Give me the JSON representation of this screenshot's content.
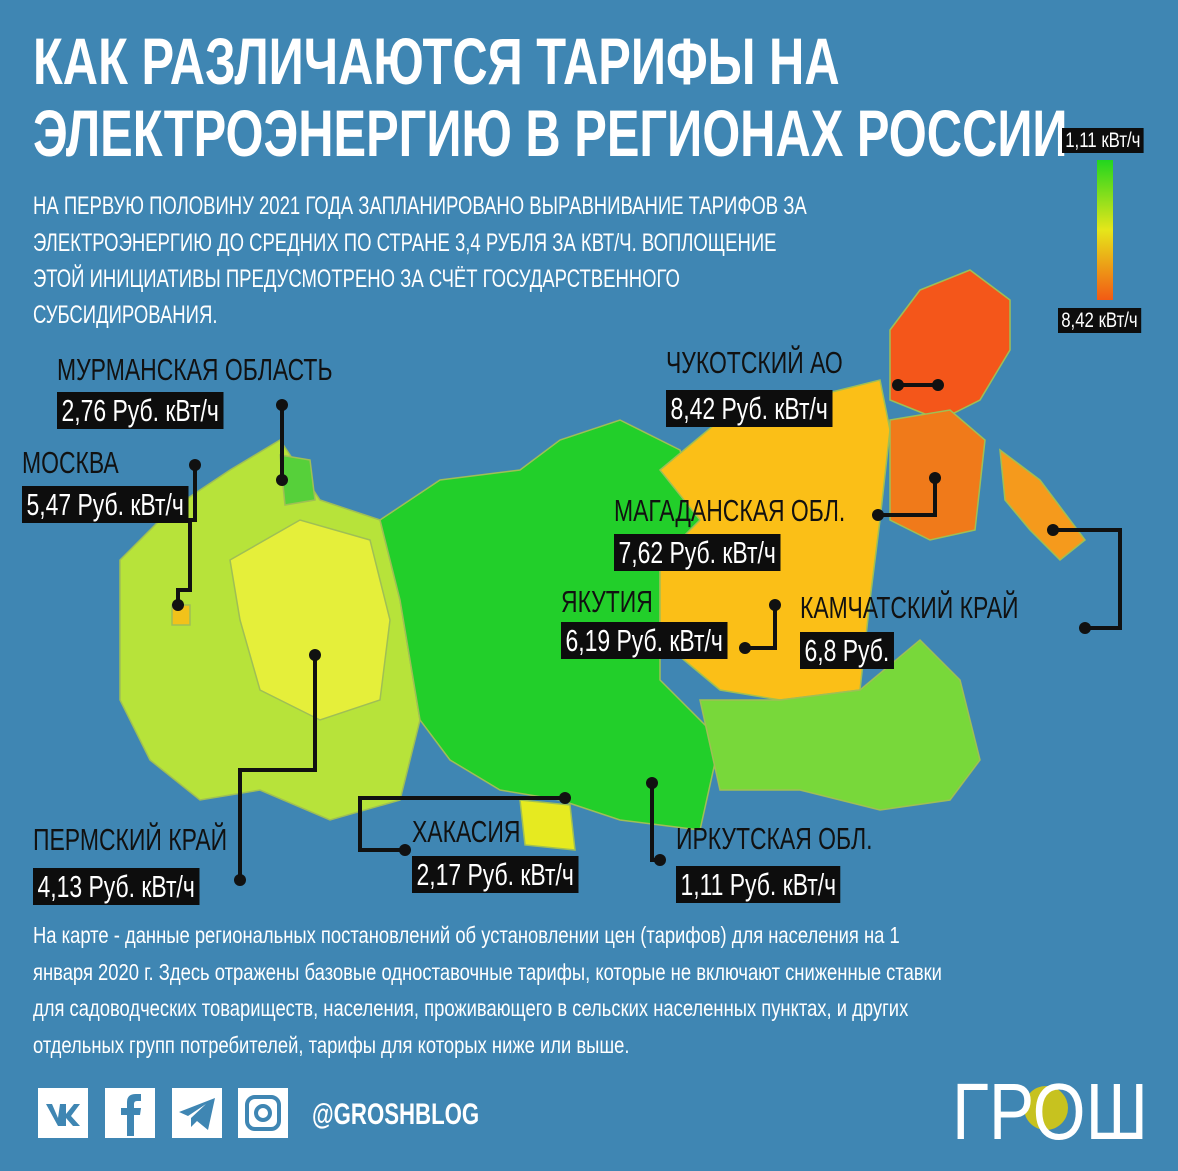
{
  "header": {
    "title": [
      "КАК РАЗЛИЧАЮТСЯ ТАРИФЫ НА",
      "ЭЛЕКТРОЭНЕРГИЮ В РЕГИОНАХ РОССИИ"
    ],
    "subtitle": [
      "НА ПЕРВУЮ ПОЛОВИНУ 2021 ГОДА ЗАПЛАНИРОВАНО ВЫРАВНИВАНИЕ ТАРИФОВ ЗА",
      "ЭЛЕКТРОЭНЕРГИЮ ДО СРЕДНИХ ПО СТРАНЕ 3,4 РУБЛЯ ЗА КВТ/Ч. ВОПЛОЩЕНИЕ",
      "ЭТОЙ ИНИЦИАТИВЫ ПРЕДУСМОТРЕНО ЗА СЧЁТ ГОСУДАРСТВЕННОГО",
      "СУБСИДИРОВАНИЯ."
    ]
  },
  "legend": {
    "low": "1,11 кВт/ч",
    "high": "8,42 кВт/ч"
  },
  "regions": [
    {
      "name": "МУРМАНСКАЯ ОБЛАСТЬ",
      "value": "2,76 Руб. кВт/ч"
    },
    {
      "name": "МОСКВА",
      "value": "5,47 Руб. кВт/ч"
    },
    {
      "name": "ПЕРМСКИЙ КРАЙ",
      "value": "4,13 Руб. кВт/ч"
    },
    {
      "name": "ХАКАСИЯ",
      "value": "2,17 Руб. кВт/ч"
    },
    {
      "name": "ИРКУТСКАЯ ОБЛ.",
      "value": "1,11 Руб. кВт/ч"
    },
    {
      "name": "ЯКУТИЯ",
      "value": "6,19 Руб. кВт/ч"
    },
    {
      "name": "МАГАДАНСКАЯ ОБЛ.",
      "value": "7,62 Руб. кВт/ч"
    },
    {
      "name": "КАМЧАТСКИЙ КРАЙ",
      "value": "6,8 Руб."
    },
    {
      "name": "ЧУКОТСКИЙ АО",
      "value": "8,42 Руб. кВт/ч"
    }
  ],
  "note": [
    "На карте - данные региональных постановлений об установлении цен (тарифов) для населения на 1",
    "января 2020 г. Здесь отражены базовые одноставочные тарифы, которые не включают сниженные ставки",
    "для садоводческих товариществ, населения, проживающего в сельских населенных пунктах, и других",
    "отдельных групп потребителей, тарифы для которых ниже или выше."
  ],
  "footer": {
    "handle": "@GROSHBLOG",
    "logo": "ГРОШ"
  }
}
